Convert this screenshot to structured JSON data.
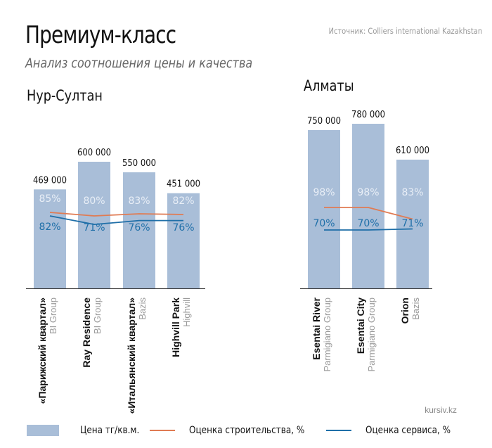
{
  "header": {
    "title": "Премиум-класс",
    "subtitle": "Анализ соотношения цены и качества",
    "source": "Источник: Colliers international Kazakhstan"
  },
  "footer": {
    "site": "kursiv.kz"
  },
  "colors": {
    "bar": "#a9bed8",
    "construction": "#e07b53",
    "service": "#1f6fa8",
    "label_light": "#e8eef6",
    "developer_text": "#9a9a9a"
  },
  "legend": {
    "price": "Цена тг/кв.м.",
    "construction": "Оценка строительства, %",
    "service": "Оценка сервиса, %"
  },
  "chart_data": [
    {
      "type": "bar",
      "city": "Нур-Султан",
      "categories": [
        "«Парижский квартал»",
        "Ray Residence",
        "«Итальянский квартал»",
        "Highvill Park"
      ],
      "developers": [
        "BI Group",
        "BI Group",
        "Bazis",
        "Highvill"
      ],
      "price_labels": [
        "469 000",
        "600 000",
        "550 000",
        "451 000"
      ],
      "series": [
        {
          "name": "Цена тг/кв.м.",
          "kind": "bar",
          "values": [
            469000,
            600000,
            550000,
            451000
          ]
        },
        {
          "name": "Оценка строительства, %",
          "kind": "line",
          "values": [
            85,
            80,
            83,
            82
          ]
        },
        {
          "name": "Оценка сервиса, %",
          "kind": "line",
          "values": [
            82,
            71,
            76,
            76
          ]
        }
      ]
    },
    {
      "type": "bar",
      "city": "Алматы",
      "categories": [
        "Esentai River",
        "Esentai City",
        "Orion"
      ],
      "developers": [
        "Parmigiano Group",
        "Parmigiano Group",
        "Bazis"
      ],
      "price_labels": [
        "750 000",
        "780 000",
        "610 000"
      ],
      "series": [
        {
          "name": "Цена тг/кв.м.",
          "kind": "bar",
          "values": [
            750000,
            780000,
            610000
          ]
        },
        {
          "name": "Оценка строительства, %",
          "kind": "line",
          "values": [
            98,
            98,
            83
          ]
        },
        {
          "name": "Оценка сервиса, %",
          "kind": "line",
          "values": [
            70,
            70,
            71
          ]
        }
      ]
    }
  ]
}
